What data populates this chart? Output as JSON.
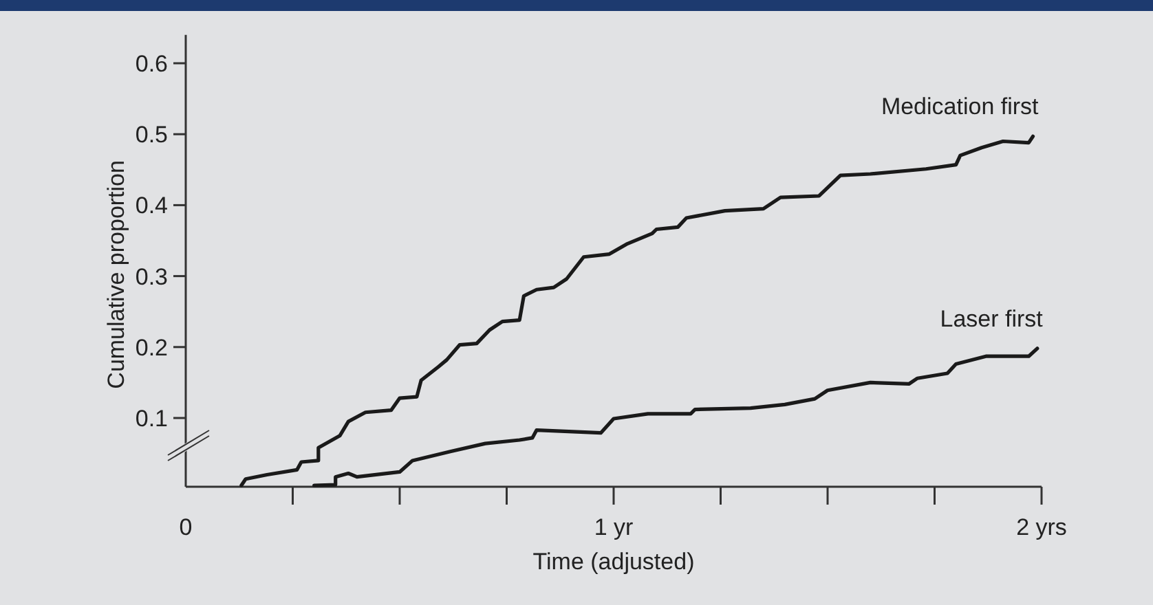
{
  "chart_data": {
    "type": "line",
    "xlabel": "Time (adjusted)",
    "ylabel": "Cumulative proportion",
    "xlim": [
      0,
      2
    ],
    "ylim": [
      0,
      0.64
    ],
    "xticks": [
      {
        "value": 0,
        "label": "0"
      },
      {
        "value": 0.25,
        "label": null
      },
      {
        "value": 0.5,
        "label": null
      },
      {
        "value": 0.75,
        "label": null
      },
      {
        "value": 1,
        "label": "1 yr"
      },
      {
        "value": 1.25,
        "label": null
      },
      {
        "value": 1.5,
        "label": null
      },
      {
        "value": 1.75,
        "label": null
      },
      {
        "value": 2,
        "label": "2 yrs"
      }
    ],
    "yticks": [
      0.1,
      0.2,
      0.3,
      0.4,
      0.5,
      0.6
    ],
    "grid": false,
    "marker": "none",
    "line_style": "solid",
    "series": [
      {
        "name": "Medication first",
        "color": "#1a1a1a",
        "x": [
          0.13,
          0.14,
          0.19,
          0.26,
          0.27,
          0.31,
          0.31,
          0.36,
          0.38,
          0.42,
          0.48,
          0.5,
          0.54,
          0.55,
          0.59,
          0.61,
          0.64,
          0.68,
          0.71,
          0.74,
          0.78,
          0.79,
          0.82,
          0.86,
          0.89,
          0.93,
          0.99,
          1.03,
          1.09,
          1.1,
          1.15,
          1.17,
          1.26,
          1.35,
          1.39,
          1.48,
          1.53,
          1.6,
          1.73,
          1.8,
          1.81,
          1.86,
          1.91,
          1.97,
          1.98
        ],
        "values": [
          0.005,
          0.014,
          0.02,
          0.027,
          0.038,
          0.04,
          0.058,
          0.075,
          0.095,
          0.108,
          0.111,
          0.128,
          0.13,
          0.153,
          0.172,
          0.182,
          0.203,
          0.205,
          0.224,
          0.236,
          0.238,
          0.272,
          0.281,
          0.284,
          0.296,
          0.327,
          0.331,
          0.345,
          0.36,
          0.366,
          0.369,
          0.382,
          0.392,
          0.395,
          0.411,
          0.413,
          0.442,
          0.444,
          0.451,
          0.457,
          0.47,
          0.481,
          0.49,
          0.488,
          0.497
        ]
      },
      {
        "name": "Laser first",
        "color": "#1a1a1a",
        "x": [
          0.3,
          0.35,
          0.35,
          0.38,
          0.4,
          0.5,
          0.53,
          0.62,
          0.7,
          0.78,
          0.81,
          0.82,
          0.97,
          1.0,
          1.08,
          1.18,
          1.19,
          1.32,
          1.4,
          1.47,
          1.5,
          1.6,
          1.69,
          1.71,
          1.78,
          1.8,
          1.87,
          1.97,
          1.99
        ],
        "values": [
          0.005,
          0.006,
          0.017,
          0.022,
          0.017,
          0.024,
          0.04,
          0.053,
          0.064,
          0.069,
          0.072,
          0.083,
          0.079,
          0.099,
          0.106,
          0.106,
          0.112,
          0.114,
          0.119,
          0.127,
          0.139,
          0.15,
          0.148,
          0.156,
          0.163,
          0.176,
          0.187,
          0.187,
          0.198
        ]
      }
    ]
  }
}
